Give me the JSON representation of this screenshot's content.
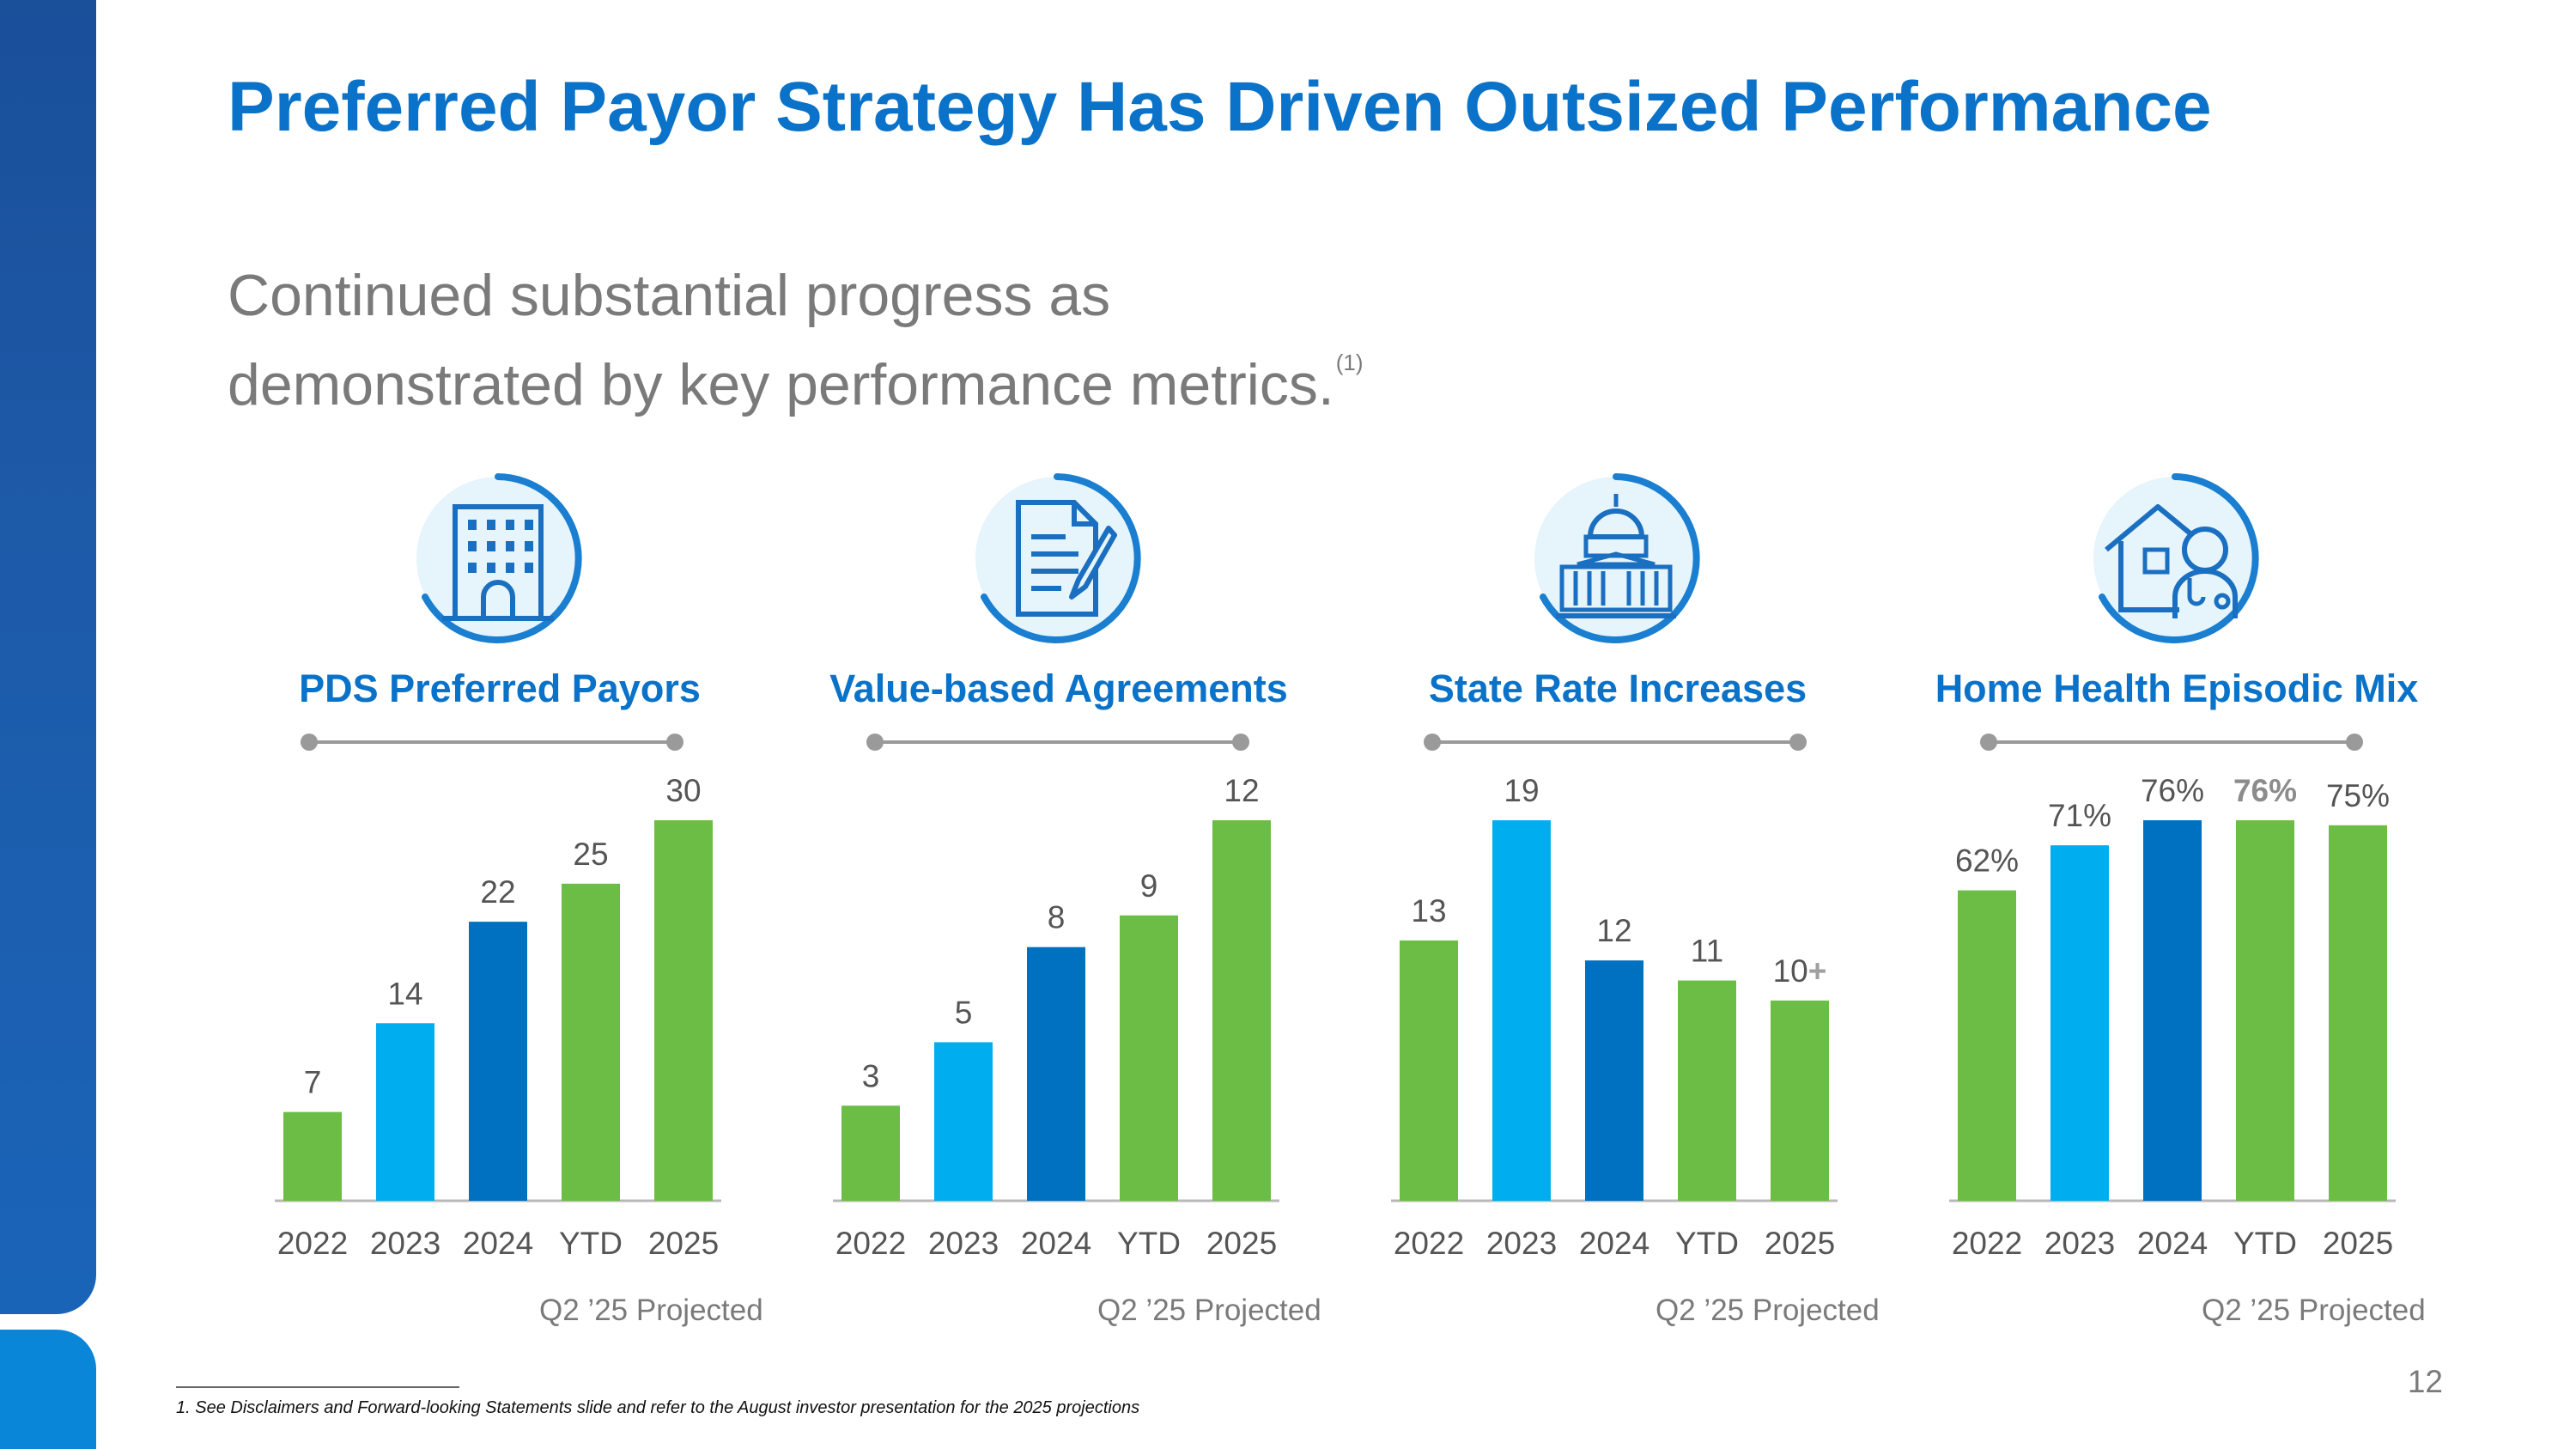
{
  "title": "Preferred Payor Strategy Has Driven Outsized Performance",
  "subtitle": {
    "line1": "Continued substantial progress as",
    "line2": "demonstrated by key performance metrics.",
    "footnote_ref": "(1)"
  },
  "colors": {
    "green": "#6cbd45",
    "light_blue": "#00aeef",
    "dark_blue": "#0070c0",
    "title_blue": "#0a72c8",
    "label_gray": "#555555",
    "highlight_gray": "#8c8c8c",
    "plus_gray": "#a0a0a0"
  },
  "chart_data": [
    {
      "type": "bar",
      "title": "PDS Preferred Payors",
      "icon": "office-building-icon",
      "categories": [
        "2022",
        "2023",
        "2024",
        "YTD",
        "2025"
      ],
      "values": [
        7,
        14,
        22,
        25,
        30
      ],
      "labels": [
        "7",
        "14",
        "22",
        "25",
        "30"
      ],
      "colors": [
        "green",
        "light_blue",
        "dark_blue",
        "green",
        "green"
      ],
      "ylim": [
        0,
        30
      ],
      "xlabel": "",
      "ylabel": "",
      "note": "Q2 ’25  Projected"
    },
    {
      "type": "bar",
      "title": "Value-based Agreements",
      "icon": "document-pen-icon",
      "categories": [
        "2022",
        "2023",
        "2024",
        "YTD",
        "2025"
      ],
      "values": [
        3,
        5,
        8,
        9,
        12
      ],
      "labels": [
        "3",
        "5",
        "8",
        "9",
        "12"
      ],
      "colors": [
        "green",
        "light_blue",
        "dark_blue",
        "green",
        "green"
      ],
      "ylim": [
        0,
        12
      ],
      "xlabel": "",
      "ylabel": "",
      "note": "Q2 ’25  Projected"
    },
    {
      "type": "bar",
      "title": "State Rate Increases",
      "icon": "capitol-building-icon",
      "categories": [
        "2022",
        "2023",
        "2024",
        "YTD",
        "2025"
      ],
      "values": [
        13,
        19,
        12,
        11,
        10
      ],
      "labels": [
        "13",
        "19",
        "12",
        "11",
        "10"
      ],
      "label_suffix": [
        "",
        "",
        "",
        "",
        "+"
      ],
      "colors": [
        "green",
        "light_blue",
        "dark_blue",
        "green",
        "green"
      ],
      "ylim": [
        0,
        19
      ],
      "xlabel": "",
      "ylabel": "",
      "note": "Q2 ’25  Projected"
    },
    {
      "type": "bar",
      "title": "Home Health Episodic Mix",
      "icon": "home-health-icon",
      "categories": [
        "2022",
        "2023",
        "2024",
        "YTD",
        "2025"
      ],
      "values": [
        62,
        71,
        76,
        76,
        75
      ],
      "labels": [
        "62%",
        "71%",
        "76%",
        "76%",
        "75%"
      ],
      "highlight_label_index": 3,
      "colors": [
        "green",
        "light_blue",
        "dark_blue",
        "green",
        "green"
      ],
      "ylim": [
        0,
        76
      ],
      "xlabel": "",
      "ylabel": "",
      "note": "Q2 ’25  Projected"
    }
  ],
  "page_number": "12",
  "footnote": "1. See Disclaimers and Forward-looking Statements slide and refer to the August investor presentation for the 2025 projections"
}
